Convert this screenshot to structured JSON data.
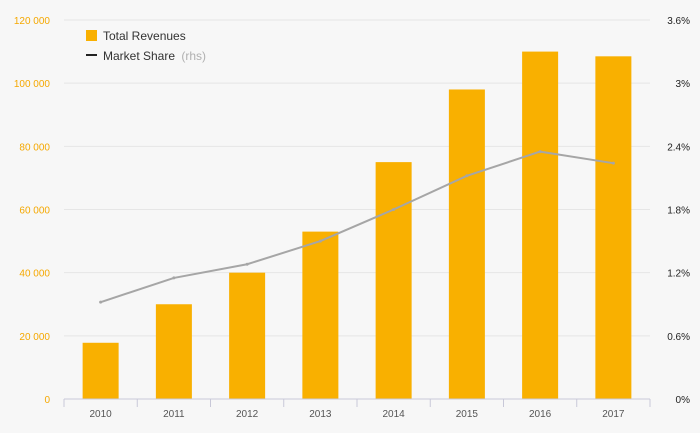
{
  "chart_data": {
    "type": "bar",
    "categories": [
      "2010",
      "2011",
      "2012",
      "2013",
      "2014",
      "2015",
      "2016",
      "2017"
    ],
    "series": [
      {
        "name": "Total Revenues",
        "type": "bar",
        "axis": "left",
        "values": [
          17800,
          30000,
          40000,
          53000,
          75000,
          98000,
          110000,
          108500
        ]
      },
      {
        "name": "Market Share",
        "name_suffix": "(rhs)",
        "type": "line",
        "axis": "right",
        "values": [
          0.92,
          1.15,
          1.28,
          1.5,
          1.8,
          2.12,
          2.35,
          2.24
        ]
      }
    ],
    "y_left": {
      "ylim": [
        0,
        120000
      ],
      "ticks": [
        0,
        20000,
        40000,
        60000,
        80000,
        100000,
        120000
      ],
      "tick_labels": [
        "0",
        "20 000",
        "40 000",
        "60 000",
        "80 000",
        "100 000",
        "120 000"
      ]
    },
    "y_right": {
      "ylim": [
        0,
        3.6
      ],
      "ticks": [
        0,
        0.6,
        1.2,
        1.8,
        2.4,
        3.0,
        3.6
      ],
      "tick_labels": [
        "0%",
        "0.6%",
        "1.2%",
        "1.8%",
        "2.4%",
        "3%",
        "3.6%"
      ]
    },
    "grid": true,
    "legend": "top-left",
    "colors": {
      "bar": "#f9b000",
      "line": "#a6a6a6",
      "legend_line": "#222222",
      "left_ticks": "#f5a800",
      "grid": "#e6e6e6",
      "axis": "#c8c8d8"
    }
  }
}
